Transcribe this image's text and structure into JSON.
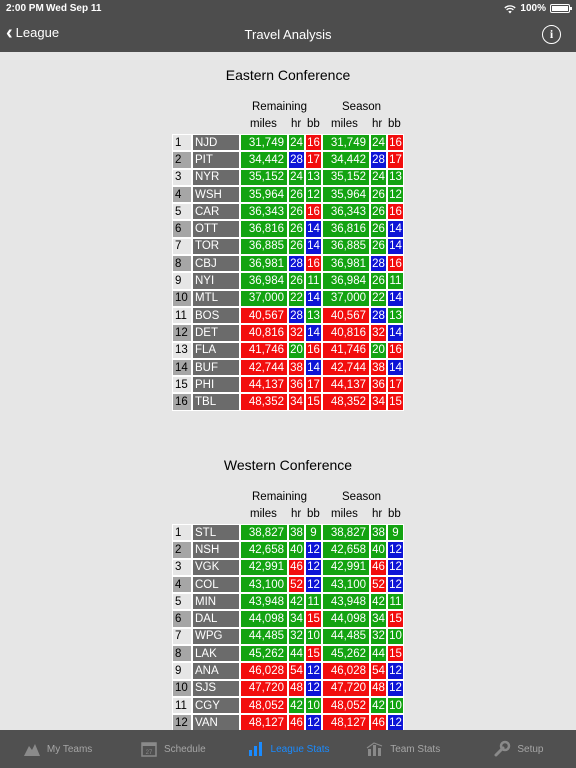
{
  "status": {
    "time": "2:00 PM",
    "date": "Wed Sep 11",
    "battery": "100%",
    "wifi_icon": "wifi-icon"
  },
  "nav": {
    "back_label": "League",
    "title": "Travel Analysis",
    "info_icon": "info-icon"
  },
  "headers": {
    "remaining": "Remaining",
    "season": "Season",
    "miles": "miles",
    "hr": "hr",
    "bb": "bb"
  },
  "colors": {
    "green": "#13a311",
    "red": "#f20d0d",
    "blue": "#0d14d6",
    "team_bg": "#6b6b6b",
    "bar_bg": "#4d4d4d"
  },
  "conferences": [
    {
      "title": "Eastern Conference",
      "rows": [
        {
          "rank": "1",
          "team": "NJD",
          "miles": "31,749",
          "mc": "g",
          "hr": "24",
          "hc": "g",
          "bb": "16",
          "bc": "r"
        },
        {
          "rank": "2",
          "team": "PIT",
          "miles": "34,442",
          "mc": "g",
          "hr": "28",
          "hc": "b",
          "bb": "17",
          "bc": "r"
        },
        {
          "rank": "3",
          "team": "NYR",
          "miles": "35,152",
          "mc": "g",
          "hr": "24",
          "hc": "g",
          "bb": "13",
          "bc": "g"
        },
        {
          "rank": "4",
          "team": "WSH",
          "miles": "35,964",
          "mc": "g",
          "hr": "26",
          "hc": "g",
          "bb": "12",
          "bc": "g"
        },
        {
          "rank": "5",
          "team": "CAR",
          "miles": "36,343",
          "mc": "g",
          "hr": "26",
          "hc": "g",
          "bb": "16",
          "bc": "r"
        },
        {
          "rank": "6",
          "team": "OTT",
          "miles": "36,816",
          "mc": "g",
          "hr": "26",
          "hc": "g",
          "bb": "14",
          "bc": "b"
        },
        {
          "rank": "7",
          "team": "TOR",
          "miles": "36,885",
          "mc": "g",
          "hr": "26",
          "hc": "g",
          "bb": "14",
          "bc": "b"
        },
        {
          "rank": "8",
          "team": "CBJ",
          "miles": "36,981",
          "mc": "g",
          "hr": "28",
          "hc": "b",
          "bb": "16",
          "bc": "r"
        },
        {
          "rank": "9",
          "team": "NYI",
          "miles": "36,984",
          "mc": "g",
          "hr": "26",
          "hc": "g",
          "bb": "11",
          "bc": "g"
        },
        {
          "rank": "10",
          "team": "MTL",
          "miles": "37,000",
          "mc": "g",
          "hr": "22",
          "hc": "g",
          "bb": "14",
          "bc": "b"
        },
        {
          "rank": "11",
          "team": "BOS",
          "miles": "40,567",
          "mc": "r",
          "hr": "28",
          "hc": "b",
          "bb": "13",
          "bc": "g"
        },
        {
          "rank": "12",
          "team": "DET",
          "miles": "40,816",
          "mc": "r",
          "hr": "32",
          "hc": "r",
          "bb": "14",
          "bc": "b"
        },
        {
          "rank": "13",
          "team": "FLA",
          "miles": "41,746",
          "mc": "r",
          "hr": "20",
          "hc": "g",
          "bb": "16",
          "bc": "r"
        },
        {
          "rank": "14",
          "team": "BUF",
          "miles": "42,744",
          "mc": "r",
          "hr": "38",
          "hc": "r",
          "bb": "14",
          "bc": "b"
        },
        {
          "rank": "15",
          "team": "PHI",
          "miles": "44,137",
          "mc": "r",
          "hr": "36",
          "hc": "r",
          "bb": "17",
          "bc": "r"
        },
        {
          "rank": "16",
          "team": "TBL",
          "miles": "48,352",
          "mc": "r",
          "hr": "34",
          "hc": "r",
          "bb": "15",
          "bc": "r"
        }
      ]
    },
    {
      "title": "Western Conference",
      "rows": [
        {
          "rank": "1",
          "team": "STL",
          "miles": "38,827",
          "mc": "g",
          "hr": "38",
          "hc": "g",
          "bb": "9",
          "bc": "g"
        },
        {
          "rank": "2",
          "team": "NSH",
          "miles": "42,658",
          "mc": "g",
          "hr": "40",
          "hc": "g",
          "bb": "12",
          "bc": "b"
        },
        {
          "rank": "3",
          "team": "VGK",
          "miles": "42,991",
          "mc": "g",
          "hr": "46",
          "hc": "r",
          "bb": "12",
          "bc": "b"
        },
        {
          "rank": "4",
          "team": "COL",
          "miles": "43,100",
          "mc": "g",
          "hr": "52",
          "hc": "r",
          "bb": "12",
          "bc": "b"
        },
        {
          "rank": "5",
          "team": "MIN",
          "miles": "43,948",
          "mc": "g",
          "hr": "42",
          "hc": "g",
          "bb": "11",
          "bc": "g"
        },
        {
          "rank": "6",
          "team": "DAL",
          "miles": "44,098",
          "mc": "g",
          "hr": "34",
          "hc": "g",
          "bb": "15",
          "bc": "r"
        },
        {
          "rank": "7",
          "team": "WPG",
          "miles": "44,485",
          "mc": "g",
          "hr": "32",
          "hc": "g",
          "bb": "10",
          "bc": "g"
        },
        {
          "rank": "8",
          "team": "LAK",
          "miles": "45,262",
          "mc": "g",
          "hr": "44",
          "hc": "g",
          "bb": "15",
          "bc": "r"
        },
        {
          "rank": "9",
          "team": "ANA",
          "miles": "46,028",
          "mc": "r",
          "hr": "54",
          "hc": "r",
          "bb": "12",
          "bc": "b"
        },
        {
          "rank": "10",
          "team": "SJS",
          "miles": "47,720",
          "mc": "r",
          "hr": "48",
          "hc": "r",
          "bb": "12",
          "bc": "b"
        },
        {
          "rank": "11",
          "team": "CGY",
          "miles": "48,052",
          "mc": "r",
          "hr": "42",
          "hc": "g",
          "bb": "10",
          "bc": "g"
        },
        {
          "rank": "12",
          "team": "VAN",
          "miles": "48,127",
          "mc": "r",
          "hr": "46",
          "hc": "r",
          "bb": "12",
          "bc": "b"
        }
      ]
    }
  ],
  "tabs": [
    {
      "label": "My Teams",
      "icon": "my-teams-icon",
      "active": false
    },
    {
      "label": "Schedule",
      "icon": "calendar-icon",
      "active": false
    },
    {
      "label": "League Stats",
      "icon": "bar-chart-icon",
      "active": true
    },
    {
      "label": "Team Stats",
      "icon": "team-stats-icon",
      "active": false
    },
    {
      "label": "Setup",
      "icon": "wrench-icon",
      "active": false
    }
  ]
}
